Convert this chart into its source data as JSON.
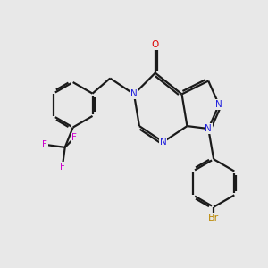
{
  "background_color": "#e8e8e8",
  "bond_color": "#1a1a1a",
  "nitrogen_color": "#2222dd",
  "oxygen_color": "#dd0000",
  "fluorine_color": "#cc00cc",
  "bromine_color": "#bb8800",
  "figsize": [
    3.0,
    3.0
  ],
  "dpi": 100,
  "xlim": [
    0,
    10
  ],
  "ylim": [
    0,
    10
  ]
}
